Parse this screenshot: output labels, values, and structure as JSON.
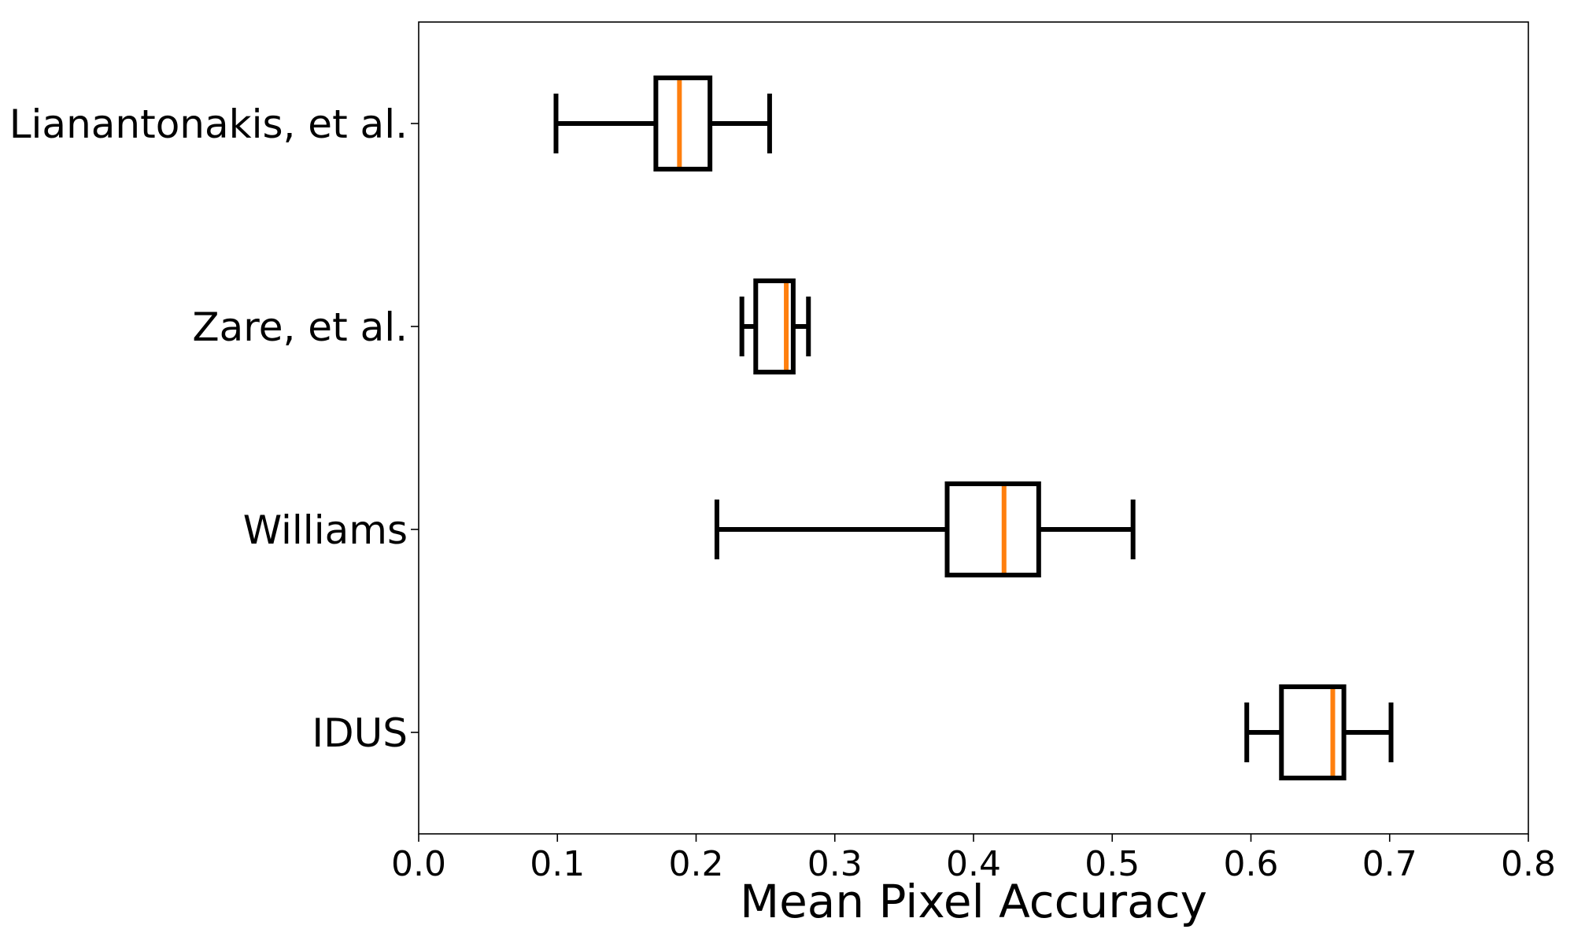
{
  "chart_data": {
    "type": "boxplot",
    "orientation": "horizontal",
    "xlabel": "Mean Pixel Accuracy",
    "xlim": [
      0.0,
      0.8
    ],
    "xticks": [
      0.0,
      0.1,
      0.2,
      0.3,
      0.4,
      0.5,
      0.6,
      0.7,
      0.8
    ],
    "xtick_labels": [
      "0.0",
      "0.1",
      "0.2",
      "0.3",
      "0.4",
      "0.5",
      "0.6",
      "0.7",
      "0.8"
    ],
    "grid": false,
    "colors": {
      "box": "#000000",
      "median": "#ff7f0e"
    },
    "series": [
      {
        "name": "Liantonakis, et al.",
        "label": "Lianantonakis, et al.",
        "whisker_low": 0.099,
        "q1": 0.171,
        "median": 0.188,
        "q3": 0.21,
        "whisker_high": 0.253
      },
      {
        "name": "Zare, et al.",
        "label": "Zare, et al.",
        "whisker_low": 0.233,
        "q1": 0.243,
        "median": 0.265,
        "q3": 0.27,
        "whisker_high": 0.281
      },
      {
        "name": "Williams",
        "label": "Williams",
        "whisker_low": 0.215,
        "q1": 0.381,
        "median": 0.422,
        "q3": 0.447,
        "whisker_high": 0.515
      },
      {
        "name": "IDUS",
        "label": "IDUS",
        "whisker_low": 0.597,
        "q1": 0.622,
        "median": 0.659,
        "q3": 0.667,
        "whisker_high": 0.701
      }
    ]
  }
}
